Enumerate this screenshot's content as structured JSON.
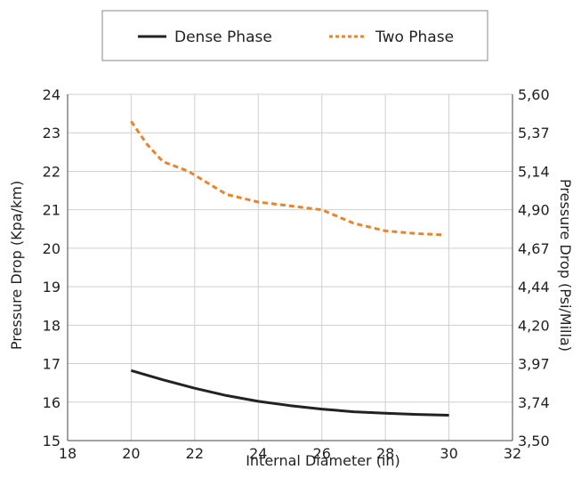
{
  "chart_data": {
    "type": "line",
    "xlabel": "Internal Diameter (in)",
    "ylabel": "Pressure Drop (Kpa/km)",
    "y2label": "Pressure Drop (Psi/Milla)",
    "xlim": [
      18,
      32
    ],
    "ylim": [
      15,
      24
    ],
    "x_ticks": [
      "18",
      "20",
      "22",
      "24",
      "26",
      "28",
      "30",
      "32"
    ],
    "y_ticks": [
      "15",
      "16",
      "17",
      "18",
      "19",
      "20",
      "21",
      "22",
      "23",
      "24"
    ],
    "y2_ticks": [
      "3,50",
      "3,74",
      "3,97",
      "4,20",
      "4,44",
      "4,67",
      "4,90",
      "5,14",
      "5,37",
      "5,60"
    ],
    "grid": true,
    "legend_position": "top",
    "series": [
      {
        "name": "Dense Phase",
        "color": "#222222",
        "style": "solid",
        "x": [
          20,
          21,
          22,
          23,
          24,
          25,
          26,
          27,
          28,
          29,
          30
        ],
        "values": [
          16.82,
          16.58,
          16.36,
          16.17,
          16.02,
          15.91,
          15.82,
          15.75,
          15.71,
          15.68,
          15.66
        ]
      },
      {
        "name": "Two Phase",
        "color": "#e8852b",
        "style": "dashed",
        "x": [
          20,
          20.5,
          21,
          21.8,
          22.3,
          23,
          24,
          25,
          26,
          27,
          28,
          29,
          29.8
        ],
        "values": [
          23.3,
          22.7,
          22.25,
          22.0,
          21.75,
          21.4,
          21.2,
          21.1,
          21.0,
          20.65,
          20.45,
          20.38,
          20.35
        ]
      }
    ]
  }
}
